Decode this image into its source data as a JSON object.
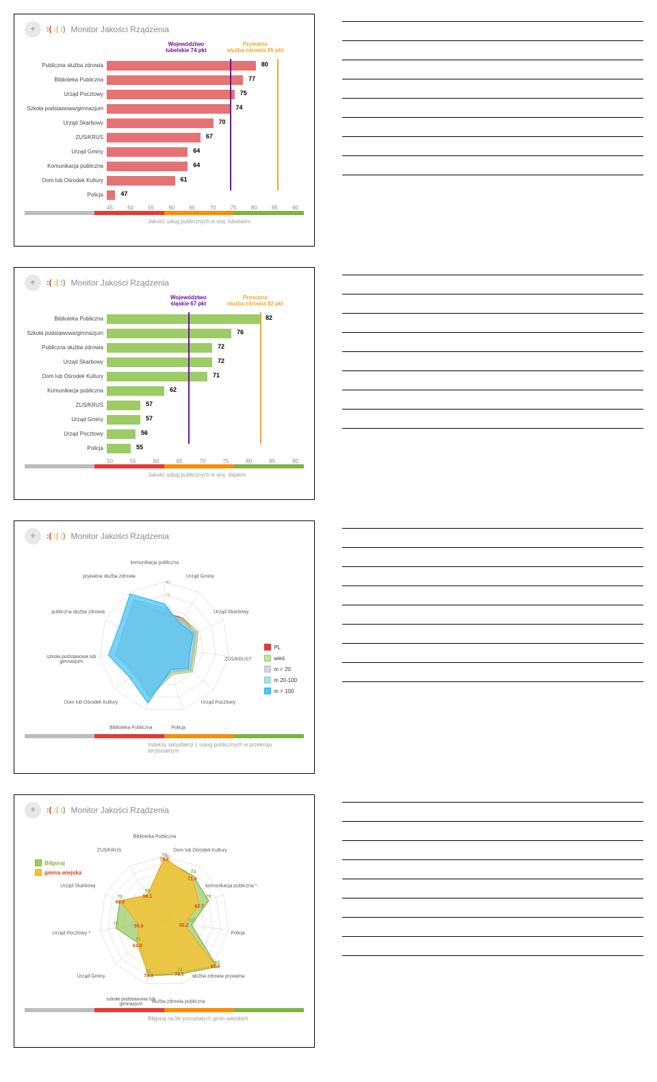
{
  "header": {
    "title": "Monitor Jakości Rządzenia",
    "emoji_red": ":(",
    "emoji_orange": ":|",
    "emoji_green": ":)"
  },
  "colorbar": {
    "gray": "#bdbdbd",
    "red": "#e53935",
    "orange": "#fb8c00",
    "green": "#7cb342"
  },
  "chart1": {
    "type": "bar",
    "bar_color": "#e57373",
    "ref1_color": "#6a0dad",
    "ref2_color": "#f5a623",
    "ref1_label": "Województwo lubelskie 74 pkt",
    "ref2_label": "Prywatna służba zdrowia 85 pkt",
    "ref1_value": 74,
    "ref2_value": 85,
    "xmin": 45,
    "xmax": 90,
    "xtick_step": 5,
    "categories": [
      "Publiczna służba zdrowia",
      "Biblioteka Publiczna",
      "Urząd Pocztowy",
      "Szkoła podstawowa/gimnazjum",
      "Urząd Skarbowy",
      "ZUS/KRUS",
      "Urząd Gminy",
      "Komunikacja publiczna",
      "Dom lub Ośrodek Kultury",
      "Policja"
    ],
    "values": [
      80,
      77,
      75,
      74,
      70,
      67,
      64,
      64,
      61,
      47
    ],
    "caption": "Jakość usług publicznych w woj. lubelskim"
  },
  "chart2": {
    "type": "bar",
    "bar_color": "#9ccc65",
    "ref1_color": "#6a0dad",
    "ref2_color": "#f5a623",
    "ref1_label": "Województwo śląskie 67 pkt",
    "ref2_label": "Prywatna służba zdrowia 82 pkt",
    "ref1_value": 67,
    "ref2_value": 82,
    "xmin": 50,
    "xmax": 90,
    "xtick_step": 5,
    "categories": [
      "Biblioteka Publiczna",
      "Szkoła podstawowa/gimnazjum",
      "Publiczna służba zdrowia",
      "Urząd Skarbowy",
      "Dom lub Ośrodek Kultury",
      "Komunikacja publiczna",
      "ZUS/KRUS",
      "Urząd Gminy",
      "Urząd Pocztowy",
      "Policja"
    ],
    "values": [
      82,
      76,
      72,
      72,
      71,
      62,
      57,
      57,
      56,
      55
    ],
    "caption": "Jakość usług publicznych w woj. śląskim"
  },
  "chart3": {
    "type": "radar",
    "axes": [
      "komunikacja publiczna",
      "Urząd Gminy",
      "Urząd Skarbowy",
      "ZUS/KRUS?",
      "Urząd Pocztowy",
      "Policja",
      "Biblioteka Publiczna",
      "Dom lub Ośrodek Kultury",
      "szkoła podstawowa lub gimnazjum",
      "publiczna służba zdrowia",
      "prywatna służba zdrowia"
    ],
    "rings": [
      15,
      30,
      45,
      60,
      75,
      90
    ],
    "series": [
      {
        "name": "PL",
        "color": "#e53935",
        "fill": "#e53935",
        "opacity": 0.85,
        "values": [
          55,
          55,
          55,
          50,
          55,
          45,
          70,
          58,
          68,
          62,
          75
        ]
      },
      {
        "name": "wieś",
        "color": "#9ccc65",
        "fill": "#c5e1a5",
        "opacity": 0.6,
        "values": [
          50,
          55,
          58,
          52,
          58,
          48,
          75,
          62,
          72,
          65,
          78
        ]
      },
      {
        "name": "m < 20",
        "color": "#b0bec5",
        "fill": "#cfd8dc",
        "opacity": 0.5,
        "values": [
          58,
          52,
          56,
          50,
          56,
          46,
          72,
          60,
          70,
          64,
          76
        ]
      },
      {
        "name": "m 20-100",
        "color": "#80cbc4",
        "fill": "#b2dfdb",
        "opacity": 0.6,
        "values": [
          60,
          50,
          54,
          48,
          54,
          44,
          74,
          58,
          72,
          66,
          80
        ]
      },
      {
        "name": "m > 100",
        "color": "#29b6f6",
        "fill": "#4fc3f7",
        "opacity": 0.75,
        "values": [
          65,
          48,
          52,
          45,
          52,
          42,
          82,
          68,
          80,
          72,
          88
        ]
      }
    ],
    "caption": "Indeksy satysfakcji z usług publicznych w przekroju terytorialnym"
  },
  "chart4": {
    "type": "radar",
    "axes": [
      "Biblioteka Publiczna",
      "Dom lub Ośrodek Kultury",
      "komunikacja publiczna *",
      "Policja",
      "służba zdrowia prywatna",
      "służba zdrowia publiczna",
      "szkoła podstawowa lub gimnazjum",
      "Urząd Gminy",
      "Urząd Pocztowy *",
      "Urząd Skarbowy",
      "ZUS/KRUS"
    ],
    "rings": [
      40,
      45,
      50,
      55,
      60,
      65,
      70,
      75,
      80
    ],
    "series": [
      {
        "name": "Biłgoraj",
        "color": "#7cb342",
        "fill": "#9ccc65",
        "opacity": 0.75,
        "values": [
          78,
          73,
          70,
          57,
          83,
          74,
          75,
          61,
          70,
          70,
          59
        ],
        "label_color": "#7cb342"
      },
      {
        "name": "gmina wiejska",
        "color": "#f5a623",
        "fill": "#fbc02d",
        "opacity": 0.75,
        "values": [
          78.8,
          71.9,
          63.7,
          52.2,
          81.6,
          73.1,
          74.3,
          61.8,
          55.9,
          69.9,
          59.1
        ],
        "label_color": "#d84315"
      }
    ],
    "caption": "Biłgoraj na tle pozostałych gmin wiejskich"
  }
}
